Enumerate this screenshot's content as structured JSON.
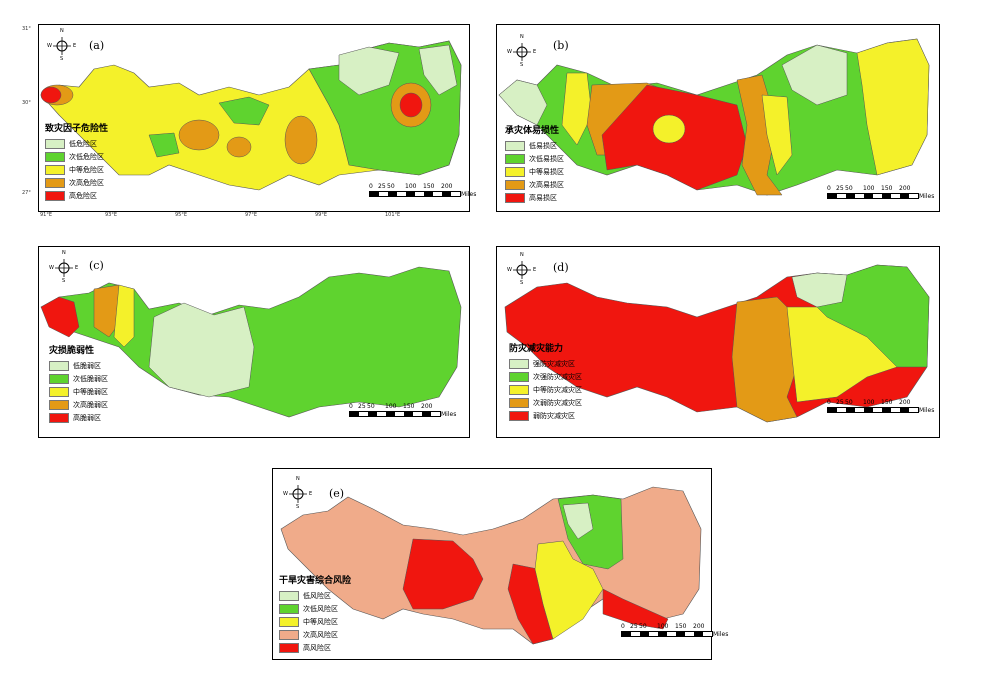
{
  "colors": {
    "lowest": "#d7f0c4",
    "low": "#5fd32f",
    "medium": "#f4f12a",
    "high": "#e39a16",
    "highest": "#f0160f",
    "risk_high": "#f0ab8a"
  },
  "compass": {
    "n": "N",
    "s": "S",
    "e": "E",
    "w": "W"
  },
  "scale": {
    "t0": "0",
    "t1": "25",
    "t2": "50",
    "t3": "100",
    "t4": "150",
    "t5": "200",
    "unit": "Miles"
  },
  "scale_e": {
    "t0": "0",
    "t1": "25",
    "t2": "50",
    "t3": "100",
    "t4": "150",
    "t5": "200",
    "unit": "Miles"
  },
  "ticks_y": {
    "top": "31°",
    "mid": "30°",
    "bot": "27°"
  },
  "ticks_x": {
    "a": "91°E",
    "b": "93°E",
    "c": "95°E",
    "d": "97°E",
    "e": "99°E",
    "f": "101°E"
  },
  "panels": {
    "a": {
      "letter": "(a)",
      "legend_title": "致灾因子危险性",
      "items": [
        "低危险区",
        "次低危险区",
        "中等危险区",
        "次高危险区",
        "高危险区"
      ]
    },
    "b": {
      "letter": "(b)",
      "legend_title": "承灾体易损性",
      "items": [
        "低易损区",
        "次低易损区",
        "中等易损区",
        "次高易损区",
        "高易损区"
      ]
    },
    "c": {
      "letter": "(c)",
      "legend_title": "灾损脆弱性",
      "items": [
        "低脆弱区",
        "次低脆弱区",
        "中等脆弱区",
        "次高脆弱区",
        "高脆弱区"
      ]
    },
    "d": {
      "letter": "(d)",
      "legend_title": "防灾减灾能力",
      "items": [
        "强防灾减灾区",
        "次强防灾减灾区",
        "中等防灾减灾区",
        "次弱防灾减灾区",
        "弱防灾减灾区"
      ]
    },
    "e": {
      "letter": "(e)",
      "legend_title": "干旱灾害综合风险",
      "items": [
        "低风险区",
        "次低风险区",
        "中等风险区",
        "次高风险区",
        "高风险区"
      ]
    }
  }
}
